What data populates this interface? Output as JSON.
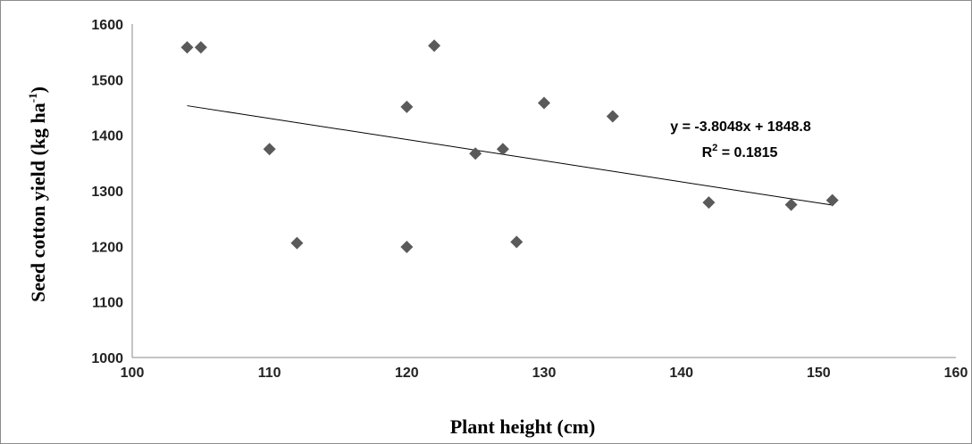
{
  "chart_data": {
    "type": "scatter",
    "title": "",
    "xlabel": "Plant height (cm)",
    "ylabel_main": "Seed cotton yield (kg ha",
    "ylabel_sup": "-1",
    "ylabel_close": ")",
    "xlim": [
      100,
      160
    ],
    "ylim": [
      1000,
      1600
    ],
    "xticks": [
      100,
      110,
      120,
      130,
      140,
      150,
      160
    ],
    "yticks": [
      1000,
      1100,
      1200,
      1300,
      1400,
      1500,
      1600
    ],
    "grid": false,
    "legend": false,
    "marker_color": "#5a5a5a",
    "series": [
      {
        "points": [
          {
            "x": 104,
            "y": 1558
          },
          {
            "x": 105,
            "y": 1558
          },
          {
            "x": 110,
            "y": 1375
          },
          {
            "x": 112,
            "y": 1206
          },
          {
            "x": 120,
            "y": 1451
          },
          {
            "x": 120,
            "y": 1199
          },
          {
            "x": 122,
            "y": 1561
          },
          {
            "x": 125,
            "y": 1367
          },
          {
            "x": 127,
            "y": 1375
          },
          {
            "x": 128,
            "y": 1208
          },
          {
            "x": 130,
            "y": 1458
          },
          {
            "x": 135,
            "y": 1434
          },
          {
            "x": 142,
            "y": 1279
          },
          {
            "x": 148,
            "y": 1275
          },
          {
            "x": 151,
            "y": 1283
          }
        ]
      }
    ],
    "trendline": {
      "type": "linear",
      "slope": -3.8048,
      "intercept": 1848.8,
      "x_range": [
        104,
        151
      ],
      "equation_label": "y = -3.8048x + 1848.8",
      "r2_prefix": "R",
      "r2_sup": "2",
      "r2_value": " = 0.1815"
    }
  }
}
